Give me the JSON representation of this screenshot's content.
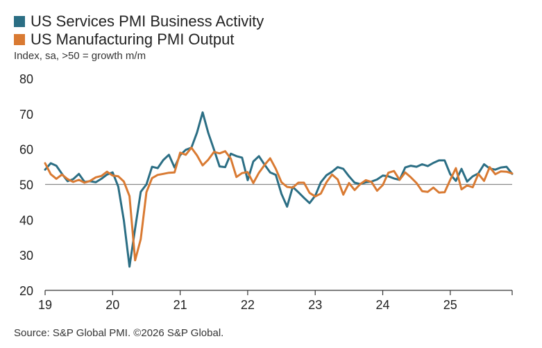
{
  "chart_data": {
    "type": "line",
    "title": "",
    "subtitle": "Index, sa, >50 = growth m/m",
    "source": "Source: S&P Global PMI. ©2026 S&P Global.",
    "xlabel": "",
    "ylabel": "",
    "ylim": [
      20,
      80
    ],
    "yticks": [
      20,
      30,
      40,
      50,
      60,
      70,
      80
    ],
    "reference_line": 50,
    "x_start": "2019-01",
    "x_end": "2025-12",
    "xtick_labels": [
      "19",
      "20",
      "21",
      "22",
      "23",
      "24",
      "25"
    ],
    "series": [
      {
        "name": "US Services PMI Business Activity",
        "color": "#2b6e84",
        "values": [
          54.2,
          56.0,
          55.3,
          53.0,
          50.9,
          51.5,
          53.0,
          50.7,
          50.9,
          50.6,
          51.6,
          52.8,
          53.4,
          49.4,
          39.8,
          26.7,
          37.5,
          47.9,
          50.0,
          55.0,
          54.6,
          56.9,
          58.4,
          54.8,
          58.3,
          59.8,
          60.4,
          64.7,
          70.4,
          64.6,
          59.9,
          55.1,
          54.9,
          58.7,
          58.0,
          57.6,
          51.2,
          56.5,
          58.0,
          55.6,
          53.4,
          52.7,
          47.3,
          43.7,
          49.3,
          47.8,
          46.2,
          44.7,
          46.8,
          50.6,
          52.6,
          53.6,
          54.9,
          54.4,
          52.3,
          50.5,
          50.1,
          50.6,
          50.8,
          51.4,
          52.5,
          52.3,
          51.7,
          51.3,
          54.8,
          55.3,
          55.0,
          55.7,
          55.2,
          56.1,
          56.8,
          56.8,
          52.9,
          51.0,
          54.4,
          50.8,
          52.3,
          53.1,
          55.7,
          54.5,
          54.2,
          54.8,
          55.0,
          53.0
        ]
      },
      {
        "name": "US Manufacturing PMI Output",
        "color": "#d97a32",
        "values": [
          56.0,
          52.9,
          51.6,
          52.8,
          51.5,
          50.7,
          51.3,
          50.5,
          51.0,
          52.0,
          52.4,
          53.6,
          52.5,
          52.3,
          50.8,
          46.7,
          28.5,
          34.5,
          47.8,
          51.8,
          52.7,
          53.0,
          53.3,
          53.4,
          59.0,
          58.4,
          60.4,
          58.2,
          55.4,
          57.0,
          59.2,
          58.8,
          59.4,
          57.3,
          52.1,
          53.2,
          53.5,
          50.4,
          53.3,
          55.5,
          57.4,
          54.4,
          50.6,
          49.3,
          49.1,
          50.5,
          50.5,
          47.6,
          46.6,
          47.4,
          50.6,
          52.8,
          51.4,
          47.1,
          50.4,
          48.4,
          50.1,
          51.2,
          50.7,
          48.2,
          49.8,
          53.3,
          53.8,
          51.3,
          53.4,
          52.0,
          50.4,
          48.1,
          47.9,
          49.1,
          47.7,
          47.8,
          51.3,
          54.6,
          48.6,
          49.7,
          49.2,
          53.0,
          51.0,
          54.9,
          52.9,
          53.7,
          53.6,
          53.1
        ]
      }
    ]
  }
}
